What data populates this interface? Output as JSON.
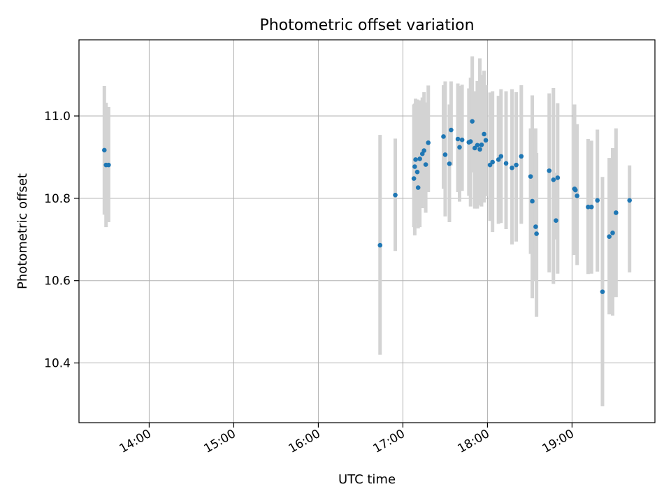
{
  "chart_data": {
    "type": "scatter",
    "title": "Photometric offset variation",
    "xlabel": "UTC time",
    "ylabel": "Photometric offset",
    "x_unit": "hours UTC (decimal)",
    "xlim": [
      13.17,
      19.98
    ],
    "ylim": [
      10.255,
      11.185
    ],
    "grid": true,
    "x_ticks": [
      {
        "value": 14,
        "label": "14:00"
      },
      {
        "value": 15,
        "label": "15:00"
      },
      {
        "value": 16,
        "label": "16:00"
      },
      {
        "value": 17,
        "label": "17:00"
      },
      {
        "value": 18,
        "label": "18:00"
      },
      {
        "value": 19,
        "label": "19:00"
      }
    ],
    "y_ticks": [
      {
        "value": 10.4,
        "label": "10.4"
      },
      {
        "value": 10.6,
        "label": "10.6"
      },
      {
        "value": 10.8,
        "label": "10.8"
      },
      {
        "value": 11.0,
        "label": "11.0"
      }
    ],
    "point_color": "#1f77b4",
    "errorbar_color": "#d3d3d3",
    "series": [
      {
        "name": "Photometric offset",
        "x": [
          13.47,
          13.49,
          13.52,
          16.73,
          16.91,
          17.13,
          17.14,
          17.15,
          17.17,
          17.18,
          17.2,
          17.23,
          17.25,
          17.27,
          17.3,
          17.48,
          17.5,
          17.55,
          17.57,
          17.65,
          17.67,
          17.7,
          17.78,
          17.8,
          17.82,
          17.85,
          17.88,
          17.91,
          17.93,
          17.96,
          17.98,
          18.03,
          18.06,
          18.13,
          18.16,
          18.22,
          18.29,
          18.34,
          18.4,
          18.51,
          18.53,
          18.57,
          18.58,
          18.73,
          18.78,
          18.81,
          18.83,
          19.03,
          19.04,
          19.06,
          19.19,
          19.23,
          19.3,
          19.36,
          19.44,
          19.48,
          19.52,
          19.68
        ],
        "y": [
          10.917,
          10.881,
          10.881,
          10.686,
          10.808,
          10.848,
          10.877,
          10.894,
          10.864,
          10.826,
          10.896,
          10.908,
          10.916,
          10.882,
          10.935,
          10.95,
          10.906,
          10.884,
          10.966,
          10.944,
          10.924,
          10.942,
          10.936,
          10.938,
          10.987,
          10.922,
          10.929,
          10.919,
          10.93,
          10.956,
          10.941,
          10.881,
          10.888,
          10.894,
          10.902,
          10.885,
          10.874,
          10.881,
          10.902,
          10.853,
          10.793,
          10.731,
          10.714,
          10.867,
          10.845,
          10.746,
          10.85,
          10.823,
          10.82,
          10.806,
          10.779,
          10.779,
          10.795,
          10.573,
          10.707,
          10.716,
          10.765,
          10.795
        ],
        "y_low": [
          10.76,
          10.73,
          10.742,
          10.42,
          10.672,
          10.73,
          10.71,
          10.752,
          10.74,
          10.727,
          10.73,
          10.776,
          10.799,
          10.765,
          10.815,
          10.823,
          10.756,
          10.742,
          10.88,
          10.815,
          10.792,
          10.818,
          10.806,
          10.78,
          10.863,
          10.775,
          10.775,
          10.783,
          10.78,
          10.79,
          10.805,
          10.745,
          10.718,
          10.738,
          10.74,
          10.725,
          10.688,
          10.695,
          10.738,
          10.665,
          10.557,
          10.6,
          10.512,
          10.62,
          10.592,
          10.7,
          10.617,
          10.662,
          10.69,
          10.638,
          10.616,
          10.617,
          10.622,
          10.295,
          10.518,
          10.515,
          10.56,
          10.62
        ],
        "y_high": [
          11.073,
          11.032,
          11.022,
          10.954,
          10.945,
          11.028,
          11.03,
          11.042,
          11.04,
          11.023,
          11.038,
          11.045,
          11.058,
          11.033,
          11.074,
          11.075,
          11.084,
          11.028,
          11.084,
          11.079,
          11.073,
          11.076,
          11.067,
          11.093,
          11.145,
          11.06,
          11.085,
          11.14,
          11.1,
          11.11,
          11.075,
          11.057,
          11.06,
          11.049,
          11.065,
          11.06,
          11.065,
          11.058,
          11.075,
          10.97,
          11.05,
          10.97,
          10.91,
          11.055,
          11.068,
          10.862,
          11.031,
          11.028,
          10.95,
          10.98,
          10.944,
          10.94,
          10.967,
          10.852,
          10.898,
          10.922,
          10.97,
          10.88
        ]
      }
    ]
  }
}
